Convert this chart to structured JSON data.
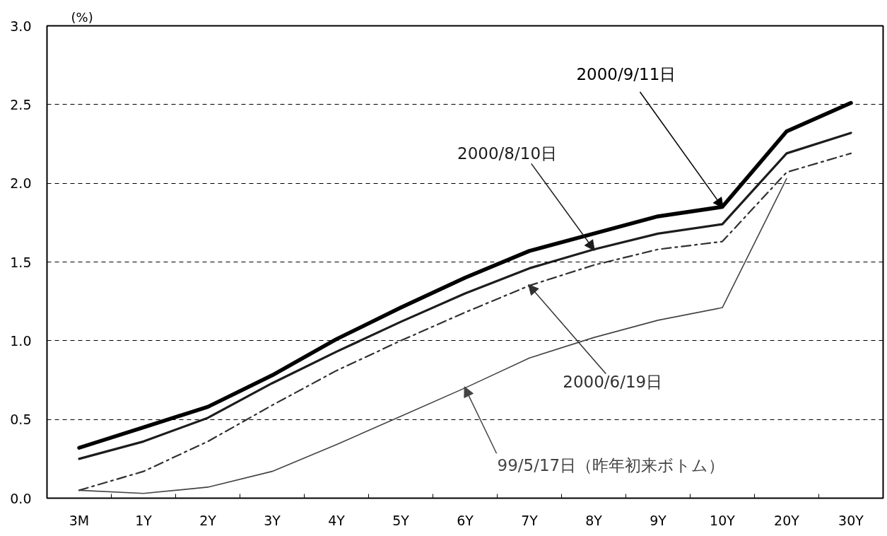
{
  "chart_data": {
    "type": "line",
    "ylabel": "(%)",
    "categories": [
      "3M",
      "1Y",
      "2Y",
      "3Y",
      "4Y",
      "5Y",
      "6Y",
      "7Y",
      "8Y",
      "9Y",
      "10Y",
      "20Y",
      "30Y"
    ],
    "series": [
      {
        "name": "2000/9/11日",
        "color": "#000000",
        "line_style": "solid",
        "values": [
          0.32,
          0.45,
          0.58,
          0.78,
          1.01,
          1.21,
          1.4,
          1.57,
          1.68,
          1.79,
          1.85,
          2.33,
          2.51
        ]
      },
      {
        "name": "2000/8/10日",
        "color": "#1c1c1c",
        "line_style": "solid",
        "values": [
          0.25,
          0.36,
          0.51,
          0.73,
          0.93,
          1.12,
          1.3,
          1.46,
          1.58,
          1.68,
          1.74,
          2.19,
          2.32
        ]
      },
      {
        "name": "2000/6/19日",
        "color": "#303030",
        "line_style": "dashdot",
        "values": [
          0.05,
          0.17,
          0.36,
          0.59,
          0.81,
          1.0,
          1.18,
          1.35,
          1.48,
          1.58,
          1.63,
          2.07,
          2.19
        ]
      },
      {
        "name": "99/5/17日（昨年初来ボトム）",
        "color": "#444444",
        "line_style": "solid",
        "values": [
          0.05,
          0.03,
          0.07,
          0.17,
          0.34,
          0.52,
          0.7,
          0.89,
          1.02,
          1.13,
          1.21,
          2.03,
          null
        ]
      }
    ],
    "ylim": [
      0,
      3
    ],
    "yticks": [
      {
        "value": 0,
        "label": "0.0"
      },
      0.5,
      {
        "value": 1,
        "label": "1.0"
      },
      1.5,
      {
        "value": 2,
        "label": "2.0"
      },
      2.5,
      {
        "value": 3,
        "label": "3.0"
      }
    ],
    "grid": "y"
  }
}
